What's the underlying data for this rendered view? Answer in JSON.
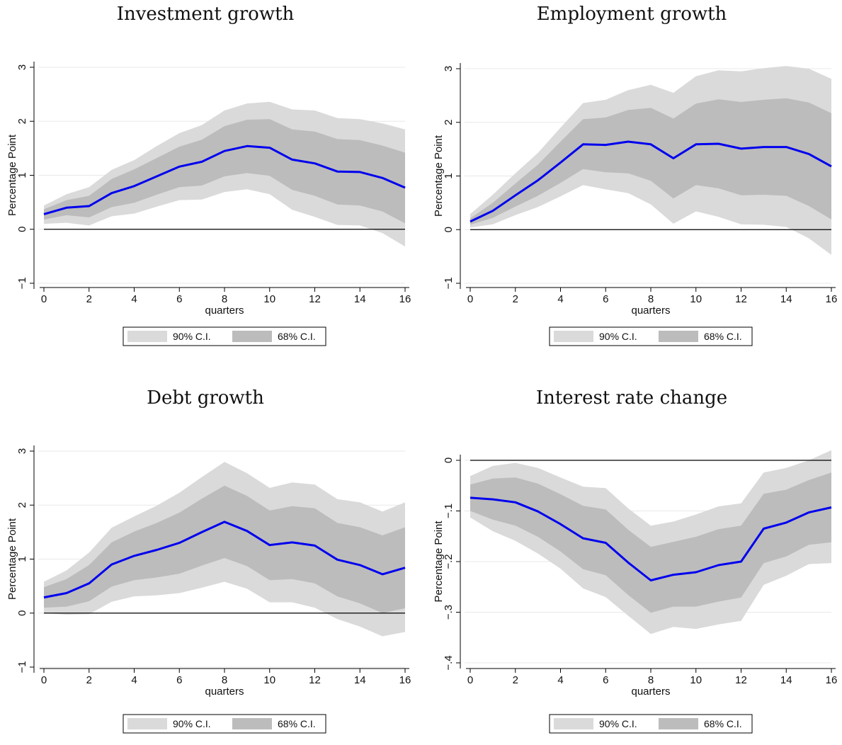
{
  "chart_data": [
    {
      "type": "area",
      "title": "Investment growth",
      "xlabel": "quarters",
      "ylabel": "Percentage Point",
      "xlim": [
        0,
        16
      ],
      "ylim": [
        -1,
        3
      ],
      "xticks": [
        "0",
        "2",
        "4",
        "6",
        "8",
        "10",
        "12",
        "14",
        "16"
      ],
      "yticks": [
        "−1",
        "0",
        "1",
        "2",
        "3"
      ],
      "legend": [
        "90% C.I.",
        "68% C.I."
      ],
      "legend_position": "bottom",
      "x": [
        0,
        1,
        2,
        3,
        4,
        5,
        6,
        7,
        8,
        9,
        10,
        11,
        12,
        13,
        14,
        15,
        16
      ],
      "series": [
        {
          "name": "90% C.I.",
          "lower": [
            0.1,
            0.12,
            0.07,
            0.24,
            0.29,
            0.42,
            0.54,
            0.55,
            0.69,
            0.74,
            0.65,
            0.36,
            0.23,
            0.08,
            0.07,
            -0.07,
            -0.32
          ],
          "upper": [
            0.44,
            0.65,
            0.78,
            1.1,
            1.28,
            1.54,
            1.78,
            1.93,
            2.2,
            2.33,
            2.36,
            2.22,
            2.2,
            2.06,
            2.04,
            1.96,
            1.85
          ]
        },
        {
          "name": "68% C.I.",
          "lower": [
            0.18,
            0.26,
            0.22,
            0.41,
            0.49,
            0.64,
            0.78,
            0.81,
            0.98,
            1.04,
            0.99,
            0.73,
            0.62,
            0.46,
            0.44,
            0.33,
            0.11
          ],
          "upper": [
            0.37,
            0.54,
            0.62,
            0.93,
            1.11,
            1.32,
            1.53,
            1.66,
            1.91,
            2.03,
            2.04,
            1.85,
            1.81,
            1.67,
            1.65,
            1.55,
            1.42
          ]
        },
        {
          "name": "",
          "values": [
            0.28,
            0.4,
            0.43,
            0.67,
            0.8,
            0.98,
            1.16,
            1.25,
            1.45,
            1.54,
            1.51,
            1.29,
            1.22,
            1.07,
            1.06,
            0.95,
            0.77
          ]
        }
      ]
    },
    {
      "type": "area",
      "title": "Employment growth",
      "xlabel": "quarters",
      "ylabel": "Percentage Point",
      "xlim": [
        0,
        16
      ],
      "ylim": [
        -1,
        3
      ],
      "xticks": [
        "0",
        "2",
        "4",
        "6",
        "8",
        "10",
        "12",
        "14",
        "16"
      ],
      "yticks": [
        "−1",
        "0",
        "1",
        "2",
        "3"
      ],
      "legend": [
        "90% C.I.",
        "68% C.I."
      ],
      "legend_position": "bottom",
      "x": [
        0,
        1,
        2,
        3,
        4,
        5,
        6,
        7,
        8,
        9,
        10,
        11,
        12,
        13,
        14,
        15,
        16
      ],
      "series": [
        {
          "name": "90% C.I.",
          "lower": [
            0.04,
            0.1,
            0.27,
            0.42,
            0.62,
            0.83,
            0.75,
            0.68,
            0.47,
            0.11,
            0.34,
            0.24,
            0.1,
            0.09,
            0.05,
            -0.16,
            -0.47
          ],
          "upper": [
            0.29,
            0.65,
            1.05,
            1.43,
            1.9,
            2.36,
            2.42,
            2.6,
            2.7,
            2.55,
            2.86,
            2.97,
            2.95,
            3.01,
            3.05,
            3.0,
            2.81
          ]
        },
        {
          "name": "68% C.I.",
          "lower": [
            0.09,
            0.22,
            0.43,
            0.63,
            0.87,
            1.13,
            1.07,
            1.05,
            0.91,
            0.58,
            0.83,
            0.77,
            0.64,
            0.65,
            0.63,
            0.44,
            0.19
          ],
          "upper": [
            0.21,
            0.5,
            0.86,
            1.21,
            1.64,
            2.06,
            2.09,
            2.23,
            2.27,
            2.07,
            2.35,
            2.43,
            2.38,
            2.42,
            2.45,
            2.37,
            2.17
          ]
        },
        {
          "name": "",
          "values": [
            0.15,
            0.35,
            0.64,
            0.92,
            1.25,
            1.59,
            1.58,
            1.64,
            1.59,
            1.33,
            1.59,
            1.6,
            1.51,
            1.54,
            1.54,
            1.41,
            1.18
          ]
        }
      ]
    },
    {
      "type": "area",
      "title": "Debt growth",
      "xlabel": "quarters",
      "ylabel": "Percentage Point",
      "xlim": [
        0,
        16
      ],
      "ylim": [
        -1,
        3
      ],
      "xticks": [
        "0",
        "2",
        "4",
        "6",
        "8",
        "10",
        "12",
        "14",
        "16"
      ],
      "yticks": [
        "−1",
        "0",
        "1",
        "2",
        "3"
      ],
      "legend": [
        "90% C.I.",
        "68% C.I."
      ],
      "legend_position": "bottom",
      "x": [
        0,
        1,
        2,
        3,
        4,
        5,
        6,
        7,
        8,
        9,
        10,
        11,
        12,
        13,
        14,
        15,
        16
      ],
      "series": [
        {
          "name": "90% C.I.",
          "lower": [
            0.0,
            -0.03,
            -0.02,
            0.21,
            0.31,
            0.33,
            0.37,
            0.47,
            0.58,
            0.45,
            0.2,
            0.2,
            0.1,
            -0.11,
            -0.25,
            -0.43,
            -0.35
          ],
          "upper": [
            0.58,
            0.79,
            1.12,
            1.58,
            1.79,
            1.99,
            2.23,
            2.52,
            2.8,
            2.59,
            2.32,
            2.42,
            2.38,
            2.11,
            2.05,
            1.88,
            2.05
          ]
        },
        {
          "name": "68% C.I.",
          "lower": [
            0.1,
            0.12,
            0.22,
            0.49,
            0.61,
            0.66,
            0.73,
            0.88,
            1.02,
            0.87,
            0.61,
            0.63,
            0.55,
            0.31,
            0.18,
            0.0,
            0.09
          ],
          "upper": [
            0.48,
            0.63,
            0.89,
            1.31,
            1.51,
            1.67,
            1.86,
            2.12,
            2.36,
            2.17,
            1.9,
            1.98,
            1.94,
            1.67,
            1.59,
            1.44,
            1.59
          ]
        },
        {
          "name": "",
          "values": [
            0.29,
            0.37,
            0.55,
            0.9,
            1.06,
            1.17,
            1.3,
            1.5,
            1.69,
            1.52,
            1.26,
            1.31,
            1.25,
            0.99,
            0.89,
            0.72,
            0.84
          ]
        }
      ]
    },
    {
      "type": "area",
      "title": "Interest rate change",
      "xlabel": "quarters",
      "ylabel": "Percentage Point",
      "xlim": [
        0,
        16
      ],
      "ylim": [
        -0.4,
        0
      ],
      "xticks": [
        "0",
        "2",
        "4",
        "6",
        "8",
        "10",
        "12",
        "14",
        "16"
      ],
      "yticks": [
        "−.4",
        "−.3",
        "−.2",
        "−.1",
        "0"
      ],
      "legend": [
        "90% C.I.",
        "68% C.I."
      ],
      "legend_position": "bottom",
      "x": [
        0,
        1,
        2,
        3,
        4,
        5,
        6,
        7,
        8,
        9,
        10,
        11,
        12,
        13,
        14,
        15,
        16
      ],
      "series": [
        {
          "name": "90% C.I.",
          "lower": [
            -0.113,
            -0.14,
            -0.159,
            -0.184,
            -0.214,
            -0.253,
            -0.27,
            -0.307,
            -0.343,
            -0.329,
            -0.333,
            -0.324,
            -0.317,
            -0.246,
            -0.228,
            -0.205,
            -0.203
          ],
          "upper": [
            -0.031,
            -0.011,
            -0.005,
            -0.015,
            -0.034,
            -0.052,
            -0.055,
            -0.095,
            -0.129,
            -0.121,
            -0.107,
            -0.091,
            -0.085,
            -0.024,
            -0.015,
            0.0,
            0.02
          ]
        },
        {
          "name": "68% C.I.",
          "lower": [
            -0.1,
            -0.117,
            -0.129,
            -0.151,
            -0.18,
            -0.215,
            -0.227,
            -0.266,
            -0.301,
            -0.289,
            -0.289,
            -0.279,
            -0.271,
            -0.203,
            -0.19,
            -0.167,
            -0.162
          ],
          "upper": [
            -0.048,
            -0.036,
            -0.034,
            -0.046,
            -0.067,
            -0.09,
            -0.097,
            -0.137,
            -0.171,
            -0.161,
            -0.151,
            -0.136,
            -0.129,
            -0.066,
            -0.058,
            -0.039,
            -0.024
          ]
        },
        {
          "name": "",
          "values": [
            -0.074,
            -0.077,
            -0.083,
            -0.101,
            -0.126,
            -0.154,
            -0.163,
            -0.202,
            -0.237,
            -0.226,
            -0.221,
            -0.207,
            -0.2,
            -0.135,
            -0.123,
            -0.103,
            -0.093
          ]
        }
      ]
    }
  ],
  "colors": {
    "ci90": "#dadada",
    "ci68": "#bcbcbc",
    "estimate": "#0000ee",
    "zero_line": "#000000",
    "grid": "#e8e8e8"
  }
}
